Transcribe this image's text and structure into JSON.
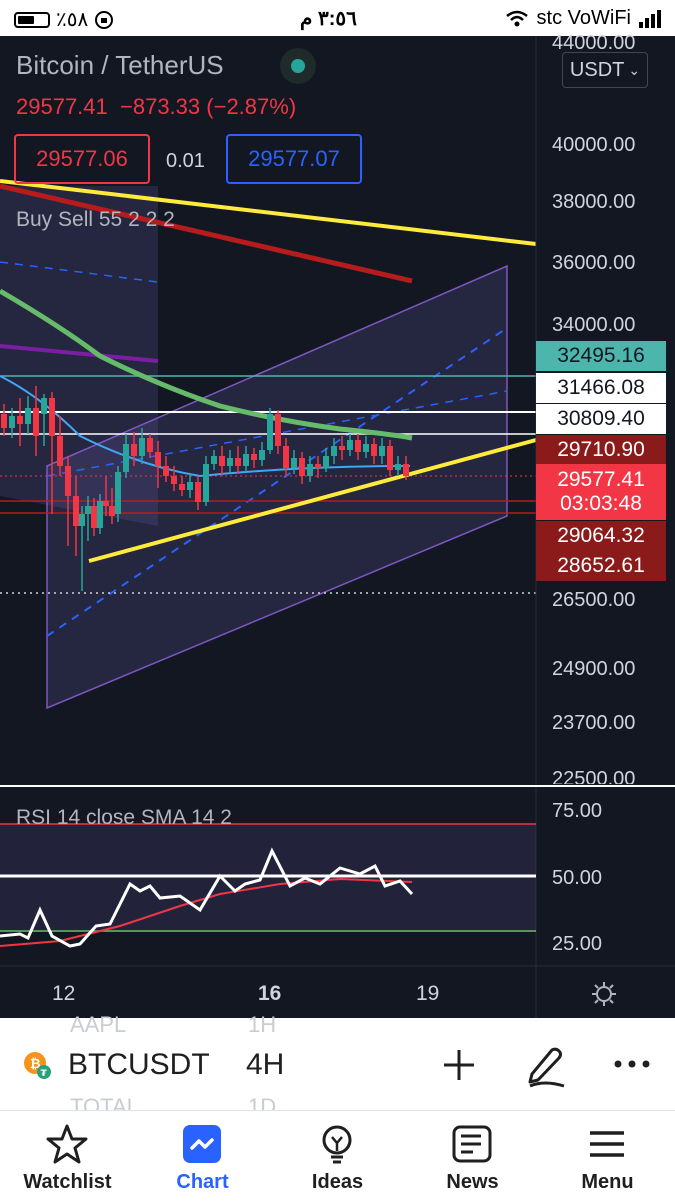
{
  "status_bar": {
    "battery": "٪٥٨",
    "time": "٣:٥٦ م",
    "carrier": "stc VoWiFi"
  },
  "chart": {
    "symbol_title": "Bitcoin / TetherUS",
    "last_price": "29577.41",
    "change": "−873.33",
    "change_pct": "(−2.87%)",
    "bid": "29577.06",
    "spread": "0.01",
    "ask": "29577.07",
    "indicator": "Buy Sell 55 2 2 2",
    "currency": "USDT",
    "price_axis": [
      "44000.00",
      "40000.00",
      "38000.00",
      "36000.00",
      "34000.00",
      "26500.00",
      "24900.00",
      "23700.00",
      "22500.00"
    ],
    "price_tags": {
      "t1": "32495.16",
      "t2": "31466.08",
      "t3": "30809.40",
      "t4": "29710.90",
      "t5_price": "29577.41",
      "t5_time": "03:03:48",
      "t6": "29064.32",
      "t7": "28652.61"
    },
    "rsi_label": "RSI 14 close SMA 14 2",
    "rsi_axis": [
      "75.00",
      "50.00",
      "25.00"
    ],
    "x_axis": [
      "12",
      "16",
      "19"
    ],
    "colors": {
      "up": "#26a69a",
      "down": "#f23645",
      "accent": "#2962ff",
      "trend": "#ffeb3b"
    }
  },
  "symbol_bar": {
    "ghost_top": "AAPL",
    "ghost_top_interval": "1H",
    "symbol": "BTCUSDT",
    "interval": "4H",
    "ghost_bottom": "TOTAL",
    "ghost_bottom_interval": "1D"
  },
  "tabs": [
    "Watchlist",
    "Chart",
    "Ideas",
    "News",
    "Menu"
  ]
}
